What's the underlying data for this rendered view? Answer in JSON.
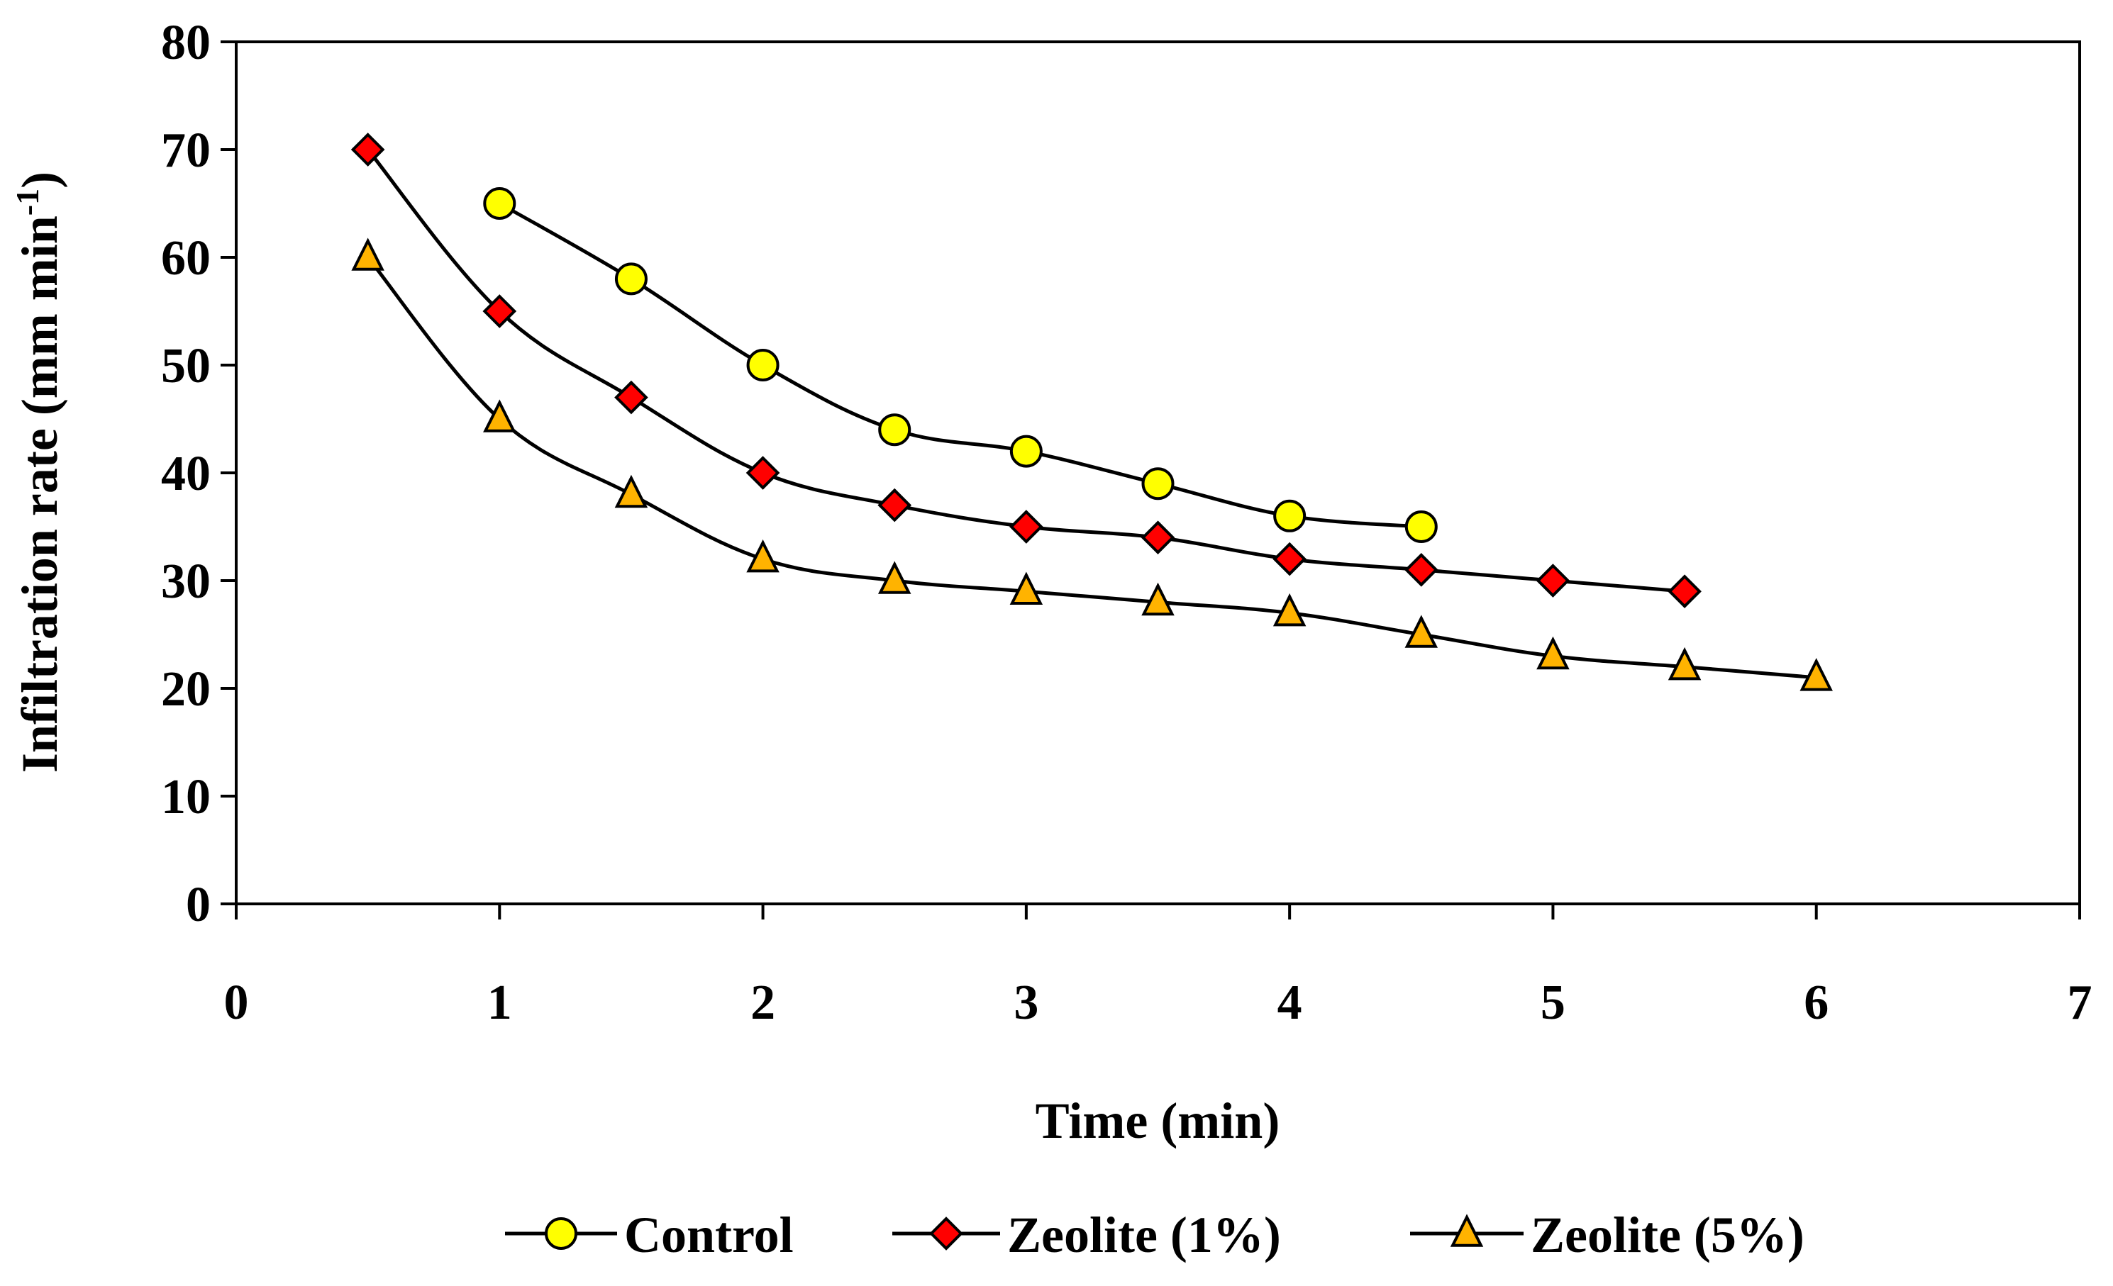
{
  "chart_data": {
    "type": "line",
    "title": "",
    "xlabel": "Time (min)",
    "ylabel": "Infiltration rate (mm min⁻¹)",
    "ylabel_parts": {
      "main": "Infiltration rate (mm min",
      "sup": "-1",
      "close": ")"
    },
    "xlim": [
      0,
      7
    ],
    "ylim": [
      0,
      80
    ],
    "xticks": [
      0,
      1,
      2,
      3,
      4,
      5,
      6,
      7
    ],
    "yticks": [
      0,
      10,
      20,
      30,
      40,
      50,
      60,
      70,
      80
    ],
    "grid": false,
    "legend_position": "bottom",
    "series": [
      {
        "name": "Control",
        "marker": "circle",
        "color": "#FFFF00",
        "x": [
          1,
          1.5,
          2,
          2.5,
          3,
          3.5,
          4,
          4.5
        ],
        "y": [
          65,
          58,
          50,
          44,
          42,
          39,
          36,
          35
        ]
      },
      {
        "name": "Zeolite (1%)",
        "marker": "diamond",
        "color": "#FF0000",
        "x": [
          0.5,
          1,
          1.5,
          2,
          2.5,
          3,
          3.5,
          4,
          4.5,
          5,
          5.5
        ],
        "y": [
          70,
          55,
          47,
          40,
          37,
          35,
          34,
          32,
          31,
          30,
          29
        ]
      },
      {
        "name": "Zeolite (5%)",
        "marker": "triangle",
        "color": "#FFB300",
        "x": [
          0.5,
          1,
          1.5,
          2,
          2.5,
          3,
          3.5,
          4,
          4.5,
          5,
          5.5,
          6
        ],
        "y": [
          60,
          45,
          38,
          32,
          30,
          29,
          28,
          27,
          25,
          23,
          22,
          21
        ]
      }
    ]
  }
}
